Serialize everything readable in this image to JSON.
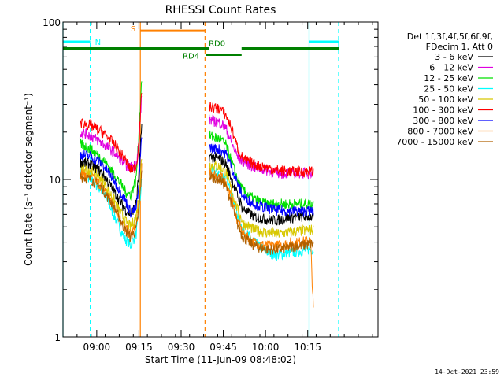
{
  "chart_data": {
    "type": "line",
    "title": "RHESSI Count Rates",
    "xlabel": "Start Time (11-Jun-09 08:48:02)",
    "ylabel": "Count Rate (s⁻¹ detector segment⁻¹)",
    "yscale": "log",
    "ylim": [
      1,
      100
    ],
    "y_ticks": [
      1,
      10,
      100
    ],
    "xlim_minutes_after_start": [
      0,
      112
    ],
    "x_ticks": [
      {
        "label": "09:00",
        "t": 12
      },
      {
        "label": "09:15",
        "t": 27
      },
      {
        "label": "09:30",
        "t": 42
      },
      {
        "label": "09:45",
        "t": 57
      },
      {
        "label": "10:00",
        "t": 72
      },
      {
        "label": "10:15",
        "t": 87
      }
    ],
    "legend_header": [
      "Det 1f,3f,4f,5f,6f,9f,",
      "FDecim 1, Att 0"
    ],
    "series": [
      {
        "name": "3 - 6 keV",
        "color": "#000000",
        "t": [
          6,
          10,
          14,
          18,
          22,
          24,
          26,
          27,
          28
        ],
        "values": [
          13,
          12.5,
          11,
          8.5,
          6.5,
          6,
          7,
          11,
          22
        ],
        "t2": [
          52,
          56,
          58,
          60,
          62,
          64,
          68,
          72,
          76,
          80,
          84,
          88,
          89
        ],
        "values2": [
          14,
          13.5,
          12.5,
          10,
          8,
          6.5,
          5.8,
          5.6,
          5.5,
          5.7,
          5.8,
          5.8,
          5.7
        ]
      },
      {
        "name": "6 - 12 keV",
        "color": "#e000e0",
        "t": [
          6,
          10,
          14,
          18,
          22,
          24,
          26,
          27,
          28
        ],
        "values": [
          20,
          19,
          17,
          15,
          12.5,
          12,
          12.5,
          17,
          35
        ],
        "t2": [
          52,
          56,
          58,
          60,
          62,
          64,
          68,
          72,
          76,
          80,
          84,
          88,
          89
        ],
        "values2": [
          24,
          23,
          21,
          17,
          14,
          13,
          12,
          11.5,
          11,
          11,
          11,
          11,
          11
        ]
      },
      {
        "name": "12 - 25 keV",
        "color": "#00e000",
        "t": [
          6,
          10,
          14,
          18,
          22,
          24,
          26,
          27,
          28
        ],
        "values": [
          17,
          15.5,
          13.5,
          11,
          8.5,
          8,
          10,
          20,
          45
        ],
        "t2": [
          52,
          56,
          58,
          60,
          62,
          64,
          68,
          72,
          76,
          80,
          84,
          88,
          89
        ],
        "values2": [
          19,
          18,
          16.5,
          13,
          10,
          8.5,
          7.5,
          7,
          7,
          7,
          7,
          7,
          7
        ]
      },
      {
        "name": "25 - 50 keV",
        "color": "#00ffff",
        "t": [
          6,
          10,
          14,
          18,
          22,
          24,
          26,
          27,
          28
        ],
        "values": [
          11,
          10,
          8.5,
          6,
          4.2,
          3.8,
          4.5,
          6,
          10
        ],
        "t2": [
          52,
          56,
          58,
          60,
          62,
          64,
          68,
          72,
          76,
          80,
          84,
          88,
          89
        ],
        "values2": [
          11.5,
          11,
          10,
          8,
          6,
          4.8,
          4,
          3.5,
          3.3,
          3.4,
          3.5,
          3.6,
          3.6
        ]
      },
      {
        "name": "50 - 100 keV",
        "color": "#d8c800",
        "t": [
          6,
          10,
          14,
          18,
          22,
          24,
          26,
          27,
          28
        ],
        "values": [
          12,
          11.5,
          10,
          7.5,
          5.5,
          5,
          5.8,
          8,
          14
        ],
        "t2": [
          52,
          56,
          58,
          60,
          62,
          64,
          68,
          72,
          76,
          80,
          84,
          88,
          89
        ],
        "values2": [
          12.5,
          12,
          11,
          8.5,
          6.5,
          5.3,
          4.8,
          4.6,
          4.5,
          4.6,
          4.7,
          4.8,
          4.8
        ]
      },
      {
        "name": "100 - 300 keV",
        "color": "#ff0000",
        "t": [
          6,
          10,
          14,
          18,
          22,
          24,
          26,
          27,
          28
        ],
        "values": [
          23,
          22,
          20,
          17,
          13.5,
          11.5,
          12,
          17,
          38
        ],
        "t2": [
          52,
          56,
          58,
          60,
          62,
          64,
          68,
          72,
          76,
          80,
          84,
          88,
          89
        ],
        "values2": [
          29,
          28,
          25.5,
          21,
          16,
          13.5,
          12.5,
          12,
          11.5,
          11.3,
          11.2,
          11.3,
          11.2
        ]
      },
      {
        "name": "300 - 800 keV",
        "color": "#0000ff",
        "t": [
          6,
          10,
          14,
          18,
          22,
          24,
          26,
          27,
          28
        ],
        "values": [
          14.5,
          14,
          12.5,
          10,
          7.5,
          6.2,
          6.5,
          9,
          20
        ],
        "t2": [
          52,
          56,
          58,
          60,
          62,
          64,
          68,
          72,
          76,
          80,
          84,
          88,
          89
        ],
        "values2": [
          16,
          15.5,
          14.5,
          12,
          9.5,
          7.8,
          7,
          6.6,
          6.4,
          6.3,
          6.3,
          6.3,
          6.3
        ]
      },
      {
        "name": "800 - 7000 keV",
        "color": "#ff8000",
        "t": [
          6,
          10,
          14,
          18,
          22,
          24,
          26,
          27,
          28
        ],
        "values": [
          11,
          10.5,
          9,
          7,
          5,
          4.5,
          5,
          7,
          12
        ],
        "t2": [
          52,
          56,
          58,
          60,
          62,
          64,
          68,
          72,
          76,
          80,
          84,
          88,
          89
        ],
        "values2": [
          11,
          10.5,
          9.5,
          7.5,
          5.5,
          4.5,
          4,
          3.8,
          3.8,
          3.9,
          4,
          4.1,
          1.5
        ]
      },
      {
        "name": "7000 - 15000 keV",
        "color": "#b06000",
        "t": [
          6,
          10,
          14,
          18,
          22,
          24,
          26,
          27,
          28
        ],
        "values": [
          10.5,
          10,
          8.8,
          6.8,
          4.8,
          4.3,
          4.8,
          6.5,
          11
        ],
        "t2": [
          52,
          56,
          58,
          60,
          62,
          64,
          68,
          72,
          76,
          80,
          84,
          88,
          89
        ],
        "values2": [
          10.5,
          10,
          9,
          7,
          5.2,
          4.3,
          3.8,
          3.6,
          3.6,
          3.7,
          3.8,
          3.9,
          3.9
        ]
      }
    ],
    "annotations": [
      {
        "label": "N",
        "color": "#00ffff",
        "kind": "bar",
        "from": 0,
        "to": 9.7,
        "y": 75
      },
      {
        "label": "",
        "color": "#00ffff",
        "kind": "bar",
        "from": 87.5,
        "to": 98,
        "y": 75
      },
      {
        "label": "S",
        "color": "#ff8000",
        "kind": "bar",
        "from": 27.5,
        "to": 50.5,
        "y": 88
      },
      {
        "label": "RD0",
        "color": "#008000",
        "kind": "bar",
        "from": 0,
        "to": 52,
        "y": 68
      },
      {
        "label": "RD4",
        "color": "#008000",
        "kind": "bar",
        "from": 50.7,
        "to": 63.5,
        "y": 62
      },
      {
        "label": "",
        "color": "#008000",
        "kind": "bar",
        "from": 63.5,
        "to": 98,
        "y": 68
      }
    ],
    "vlines": [
      {
        "t": 0,
        "color": "#00ffff",
        "style": "solid"
      },
      {
        "t": 9.7,
        "color": "#00ffff",
        "style": "dashed"
      },
      {
        "t": 27.5,
        "color": "#ff8000",
        "style": "solid"
      },
      {
        "t": 50.5,
        "color": "#ff8000",
        "style": "dashed"
      },
      {
        "t": 87.5,
        "color": "#00ffff",
        "style": "solid"
      },
      {
        "t": 98,
        "color": "#00ffff",
        "style": "dashed"
      }
    ],
    "grid": false,
    "legend_position": "right"
  },
  "footer_timestamp": "14-Oct-2021 23:59"
}
